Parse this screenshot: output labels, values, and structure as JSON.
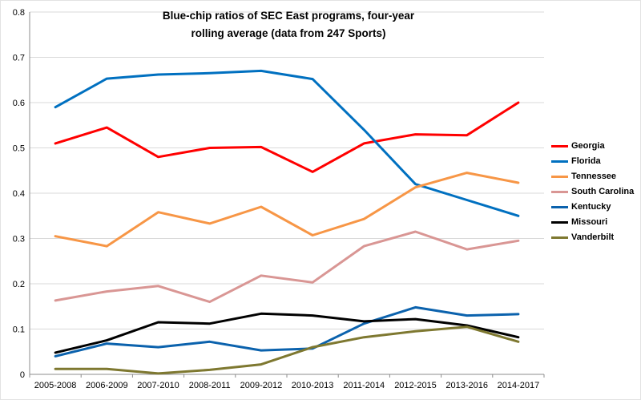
{
  "chart_data": {
    "type": "line",
    "title": "Blue-chip ratios of SEC East programs, four-year rolling average (data from 247 Sports)",
    "title_lines": [
      "Blue-chip ratios of SEC East programs, four-year",
      "rolling average (data from 247 Sports)"
    ],
    "categories": [
      "2005-2008",
      "2006-2009",
      "2007-2010",
      "2008-2011",
      "2009-2012",
      "2010-2013",
      "2011-2014",
      "2012-2015",
      "2013-2016",
      "2014-2017"
    ],
    "series": [
      {
        "name": "Georgia",
        "color": "#FF0000",
        "values": [
          0.51,
          0.545,
          0.48,
          0.5,
          0.502,
          0.447,
          0.51,
          0.53,
          0.528,
          0.6
        ]
      },
      {
        "name": "Florida",
        "color": "#0070C0",
        "values": [
          0.59,
          0.653,
          0.662,
          0.665,
          0.67,
          0.652,
          0.54,
          0.42,
          0.385,
          0.35
        ]
      },
      {
        "name": "Tennessee",
        "color": "#F79646",
        "values": [
          0.305,
          0.283,
          0.358,
          0.333,
          0.37,
          0.307,
          0.343,
          0.413,
          0.445,
          0.423
        ]
      },
      {
        "name": "South Carolina",
        "color": "#D99694",
        "values": [
          0.163,
          0.183,
          0.195,
          0.16,
          0.218,
          0.203,
          0.283,
          0.315,
          0.276,
          0.295
        ]
      },
      {
        "name": "Kentucky",
        "color": "#0B62AD",
        "values": [
          0.04,
          0.068,
          0.06,
          0.072,
          0.053,
          0.057,
          0.112,
          0.148,
          0.13,
          0.133
        ]
      },
      {
        "name": "Missouri",
        "color": "#000000",
        "values": [
          0.048,
          0.075,
          0.115,
          0.112,
          0.134,
          0.13,
          0.117,
          0.122,
          0.108,
          0.082
        ]
      },
      {
        "name": "Vanderbilt",
        "color": "#7E7830",
        "values": [
          0.012,
          0.012,
          0.002,
          0.01,
          0.022,
          0.06,
          0.082,
          0.095,
          0.105,
          0.072
        ]
      }
    ],
    "ylim": [
      0,
      0.8
    ],
    "y_ticks": [
      "0",
      "0.1",
      "0.2",
      "0.3",
      "0.4",
      "0.5",
      "0.6",
      "0.7",
      "0.8"
    ],
    "xlabel": "",
    "ylabel": "",
    "grid": true,
    "legend_position": "right",
    "colors": {
      "gridline": "#D9D9D9",
      "axis": "#8C8C8C",
      "text": "#000000",
      "background": "#FFFFFF"
    }
  }
}
